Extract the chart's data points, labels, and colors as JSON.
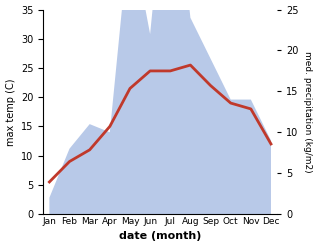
{
  "months": [
    "Jan",
    "Feb",
    "Mar",
    "Apr",
    "May",
    "Jun",
    "Jul",
    "Aug",
    "Sep",
    "Oct",
    "Nov",
    "Dec"
  ],
  "temp_c": [
    5.5,
    9.0,
    11.0,
    15.0,
    21.5,
    24.5,
    24.5,
    25.5,
    22.0,
    19.0,
    18.0,
    12.0
  ],
  "precip_kg": [
    2.0,
    8.0,
    11.0,
    10.0,
    35.0,
    22.0,
    47.0,
    24.0,
    19.0,
    14.0,
    14.0,
    9.0
  ],
  "temp_color": "#c0392b",
  "precip_color": "#b8c9e8",
  "background_color": "#ffffff",
  "left_ylim": [
    0,
    35
  ],
  "right_ylim": [
    0,
    25
  ],
  "left_yticks": [
    0,
    5,
    10,
    15,
    20,
    25,
    30,
    35
  ],
  "right_yticks": [
    0,
    5,
    10,
    15,
    20,
    25
  ],
  "right_tick_labels": [
    "0",
    "5",
    "10",
    "15",
    "20",
    "25"
  ],
  "ylabel_left": "max temp (C)",
  "ylabel_right": "med. precipitation (kg/m2)",
  "xlabel": "date (month)",
  "line_width": 2.0,
  "scale_factor": 1.4
}
